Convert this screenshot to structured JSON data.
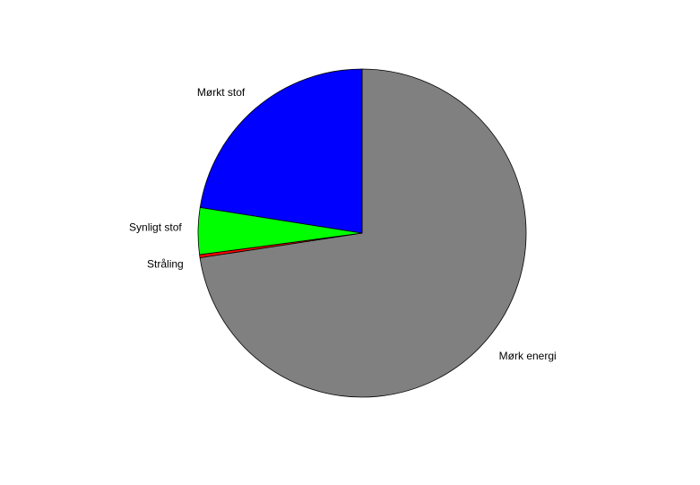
{
  "chart_data": {
    "type": "pie",
    "title": "",
    "start_angle_deg": 90,
    "direction": "clockwise",
    "slices": [
      {
        "label": "Mørk energi",
        "value": 72.6,
        "color": "#808080"
      },
      {
        "label": "Stråling",
        "value": 0.3,
        "color": "#ff0000"
      },
      {
        "label": "Synligt stof",
        "value": 4.6,
        "color": "#00ff00"
      },
      {
        "label": "Mørkt stof",
        "value": 22.5,
        "color": "#0000ff"
      }
    ]
  }
}
